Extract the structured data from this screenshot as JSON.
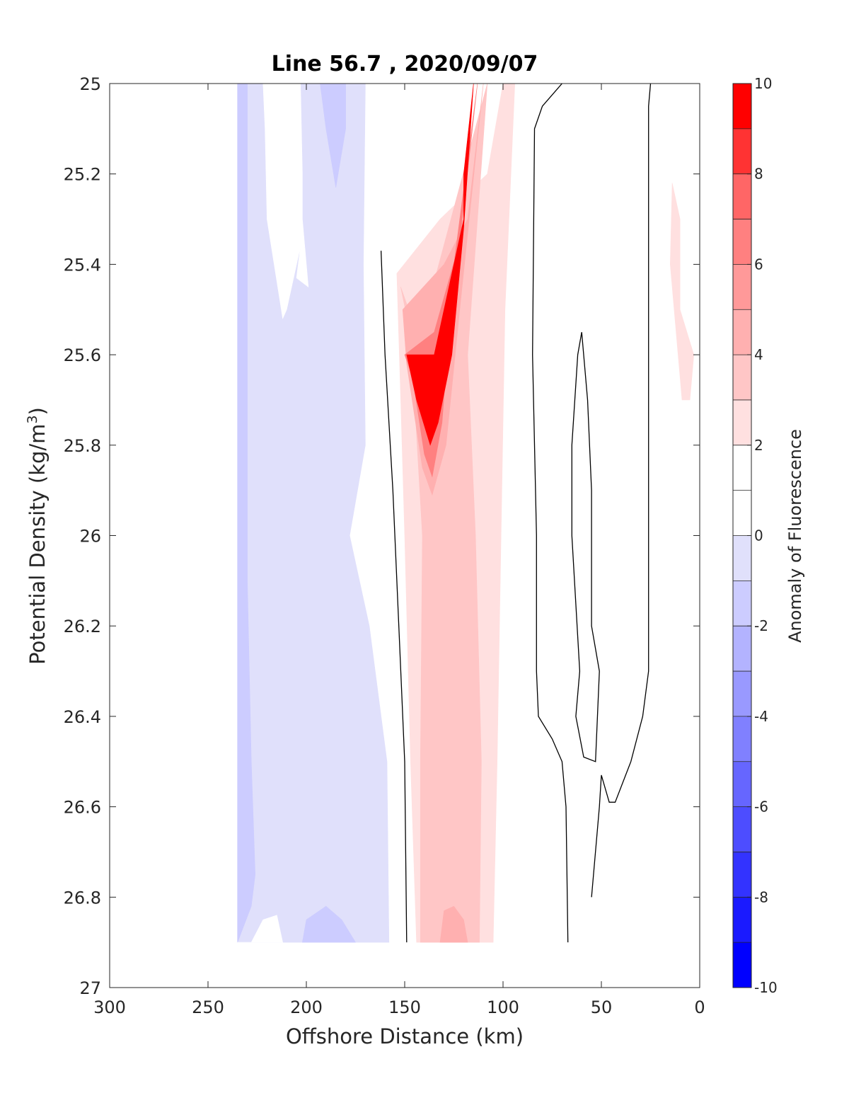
{
  "chart_data": {
    "type": "contourf",
    "title": "Line 56.7 , 2020/09/07",
    "xlabel": "Offshore Distance (km)",
    "ylabel_main": "Potential Density (kg/m",
    "ylabel_sup": "3",
    "ylabel_close": ")",
    "xlim": [
      300,
      0
    ],
    "x_reversed": true,
    "ylim": [
      27,
      25
    ],
    "y_reversed": true,
    "xticks": [
      300,
      250,
      200,
      150,
      100,
      50,
      0
    ],
    "xtick_labels": [
      "300",
      "250",
      "200",
      "150",
      "100",
      "50",
      "0"
    ],
    "yticks": [
      25,
      25.2,
      25.4,
      25.6,
      25.8,
      26,
      26.2,
      26.4,
      26.6,
      26.8,
      27
    ],
    "ytick_labels": [
      "25",
      "25.2",
      "25.4",
      "25.6",
      "25.8",
      "26",
      "26.2",
      "26.4",
      "26.6",
      "26.8",
      "27"
    ],
    "colorbar": {
      "label": "Anomaly of Fluorescence",
      "range": [
        -10,
        10
      ],
      "tick_values": [
        -10,
        -8,
        -6,
        -4,
        -2,
        0,
        2,
        4,
        6,
        8,
        10
      ],
      "tick_labels": [
        "-10",
        "-8",
        "-6",
        "-4",
        "-2",
        "0",
        "2",
        "4",
        "6",
        "8",
        "10"
      ],
      "levels": [
        {
          "from": -10,
          "to": -9,
          "color": "#0000ff"
        },
        {
          "from": -9,
          "to": -8,
          "color": "#1a1aff"
        },
        {
          "from": -8,
          "to": -7,
          "color": "#3333ff"
        },
        {
          "from": -7,
          "to": -6,
          "color": "#4d4dff"
        },
        {
          "from": -6,
          "to": -5,
          "color": "#6666ff"
        },
        {
          "from": -5,
          "to": -4,
          "color": "#8080ff"
        },
        {
          "from": -4,
          "to": -3,
          "color": "#9999ff"
        },
        {
          "from": -3,
          "to": -2,
          "color": "#b3b3ff"
        },
        {
          "from": -2,
          "to": -1,
          "color": "#ccccff"
        },
        {
          "from": -1,
          "to": 0,
          "color": "#e0e0fb"
        },
        {
          "from": 0,
          "to": 1,
          "color": "#ffffff"
        },
        {
          "from": 1,
          "to": 2,
          "color": "#ffffff"
        },
        {
          "from": 2,
          "to": 3,
          "color": "#ffe0e0"
        },
        {
          "from": 3,
          "to": 4,
          "color": "#ffc6c6"
        },
        {
          "from": 4,
          "to": 5,
          "color": "#ffb0b0"
        },
        {
          "from": 5,
          "to": 6,
          "color": "#ff9999"
        },
        {
          "from": 6,
          "to": 7,
          "color": "#ff8080"
        },
        {
          "from": 7,
          "to": 8,
          "color": "#ff6666"
        },
        {
          "from": 8,
          "to": 9,
          "color": "#ff3333"
        },
        {
          "from": 9,
          "to": 10,
          "color": "#ff0000"
        }
      ]
    },
    "fill_regions": [
      {
        "name": "neg-outer-band",
        "color": "#e0e0fb",
        "points": [
          [
            235,
            25
          ],
          [
            170,
            25
          ],
          [
            171,
            25.4
          ],
          [
            170,
            25.8
          ],
          [
            178,
            26.0
          ],
          [
            168,
            26.2
          ],
          [
            159,
            26.5
          ],
          [
            158,
            26.9
          ],
          [
            235,
            26.9
          ]
        ]
      },
      {
        "name": "neg-west-strip",
        "color": "#ccccff",
        "points": [
          [
            235,
            25
          ],
          [
            230,
            25
          ],
          [
            230,
            25.6
          ],
          [
            230,
            26.1
          ],
          [
            228,
            26.5
          ],
          [
            226,
            26.75
          ],
          [
            228,
            26.82
          ],
          [
            235,
            26.9
          ]
        ]
      },
      {
        "name": "neg-top-lobe",
        "color": "#ccccff",
        "points": [
          [
            193,
            25
          ],
          [
            180,
            25
          ],
          [
            180,
            25.1
          ],
          [
            185,
            25.23
          ],
          [
            190,
            25.1
          ]
        ]
      },
      {
        "name": "neg-bottom-lobe",
        "color": "#ccccff",
        "points": [
          [
            202,
            26.9
          ],
          [
            200,
            26.85
          ],
          [
            190,
            26.82
          ],
          [
            182,
            26.85
          ],
          [
            175,
            26.9
          ]
        ]
      },
      {
        "name": "zero-white-pocket",
        "color": "#ffffff",
        "points": [
          [
            222,
            25
          ],
          [
            203,
            25
          ],
          [
            202,
            25.2
          ],
          [
            202,
            25.3
          ],
          [
            199,
            25.45
          ],
          [
            205,
            25.43
          ],
          [
            203,
            25.36
          ],
          [
            210,
            25.5
          ],
          [
            212,
            25.52
          ],
          [
            220,
            25.3
          ],
          [
            221,
            25.1
          ]
        ]
      },
      {
        "name": "zero-bottom-notch",
        "color": "#ffffff",
        "points": [
          [
            235,
            26.9
          ],
          [
            228,
            26.9
          ],
          [
            222,
            26.85
          ],
          [
            215,
            26.84
          ],
          [
            212,
            26.9
          ]
        ]
      },
      {
        "name": "pos-outer-band",
        "color": "#ffe0e0",
        "points": [
          [
            100,
            25
          ],
          [
            94,
            25
          ],
          [
            99,
            25.5
          ],
          [
            101,
            26.0
          ],
          [
            103,
            26.5
          ],
          [
            105,
            26.9
          ],
          [
            144,
            26.9
          ],
          [
            147,
            26.5
          ],
          [
            150,
            26.0
          ],
          [
            152,
            25.7
          ],
          [
            154,
            25.42
          ],
          [
            132,
            25.3
          ],
          [
            108,
            25.2
          ]
        ]
      },
      {
        "name": "pos-mid-band",
        "color": "#ffc6c6",
        "points": [
          [
            108,
            25
          ],
          [
            118,
            25.6
          ],
          [
            114,
            26.0
          ],
          [
            111,
            26.5
          ],
          [
            112,
            26.9
          ],
          [
            142,
            26.9
          ],
          [
            142,
            26.5
          ],
          [
            141,
            26.0
          ],
          [
            145,
            25.7
          ],
          [
            148,
            25.5
          ],
          [
            152,
            25.45
          ],
          [
            145,
            25.6
          ]
        ]
      },
      {
        "name": "pos-core-5",
        "color": "#ffb0b0",
        "points": [
          [
            110,
            25
          ],
          [
            122,
            25.5
          ],
          [
            129,
            25.8
          ],
          [
            136,
            25.91
          ],
          [
            141,
            25.85
          ],
          [
            149,
            25.62
          ],
          [
            151,
            25.5
          ],
          [
            130,
            25.4
          ],
          [
            118,
            25.3
          ]
        ]
      },
      {
        "name": "pos-core-8",
        "color": "#ff8080",
        "points": [
          [
            113,
            25
          ],
          [
            125,
            25.4
          ],
          [
            131,
            25.75
          ],
          [
            136,
            25.87
          ],
          [
            140,
            25.82
          ],
          [
            146,
            25.65
          ],
          [
            150,
            25.6
          ],
          [
            135,
            25.55
          ],
          [
            122,
            25.35
          ]
        ]
      },
      {
        "name": "pos-core-10",
        "color": "#ff0000",
        "points": [
          [
            115,
            25
          ],
          [
            120,
            25.2
          ],
          [
            120,
            25.3
          ],
          [
            135,
            25.6
          ],
          [
            149,
            25.6
          ],
          [
            144,
            25.7
          ],
          [
            137,
            25.8
          ],
          [
            133,
            25.75
          ],
          [
            126,
            25.6
          ],
          [
            120,
            25.32
          ]
        ]
      },
      {
        "name": "pos-bottom-blob",
        "color": "#ffb0b0",
        "points": [
          [
            132,
            26.9
          ],
          [
            130,
            26.83
          ],
          [
            125,
            26.82
          ],
          [
            120,
            26.85
          ],
          [
            118,
            26.9
          ]
        ]
      },
      {
        "name": "pos-east-sliver",
        "color": "#ffe0e0",
        "points": [
          [
            14,
            25.22
          ],
          [
            10,
            25.3
          ],
          [
            10,
            25.5
          ],
          [
            3,
            25.6
          ],
          [
            5,
            25.7
          ],
          [
            9,
            25.7
          ],
          [
            15,
            25.4
          ]
        ]
      }
    ],
    "contour_lines": [
      {
        "name": "zero-contour-west",
        "points": [
          [
            162,
            25.37
          ],
          [
            160,
            25.6
          ],
          [
            156,
            25.9
          ],
          [
            153,
            26.2
          ],
          [
            150,
            26.5
          ],
          [
            149,
            26.9
          ]
        ]
      },
      {
        "name": "zero-contour-east-outer",
        "points": [
          [
            70,
            25
          ],
          [
            80,
            25.05
          ],
          [
            84,
            25.1
          ],
          [
            85,
            25.6
          ],
          [
            83,
            26.0
          ],
          [
            83,
            26.3
          ],
          [
            82,
            26.4
          ],
          [
            75,
            26.45
          ],
          [
            70,
            26.5
          ],
          [
            68,
            26.6
          ],
          [
            67,
            26.9
          ]
        ]
      },
      {
        "name": "zero-contour-inner-loop",
        "points": [
          [
            60,
            25.55
          ],
          [
            57,
            25.7
          ],
          [
            55,
            25.9
          ],
          [
            55,
            26.2
          ],
          [
            51,
            26.3
          ],
          [
            53,
            26.5
          ],
          [
            59,
            26.49
          ],
          [
            63,
            26.4
          ],
          [
            61,
            26.3
          ],
          [
            65,
            26.0
          ],
          [
            65,
            25.8
          ],
          [
            62,
            25.6
          ],
          [
            60,
            25.55
          ]
        ]
      },
      {
        "name": "zero-contour-east-inner",
        "points": [
          [
            25,
            25
          ],
          [
            26,
            25.05
          ],
          [
            26,
            25.6
          ],
          [
            26,
            26.0
          ],
          [
            26,
            26.3
          ],
          [
            29,
            26.4
          ],
          [
            35,
            26.5
          ],
          [
            43,
            26.59
          ],
          [
            46,
            26.59
          ],
          [
            50,
            26.53
          ],
          [
            51,
            26.6
          ],
          [
            55,
            26.8
          ]
        ]
      }
    ]
  }
}
